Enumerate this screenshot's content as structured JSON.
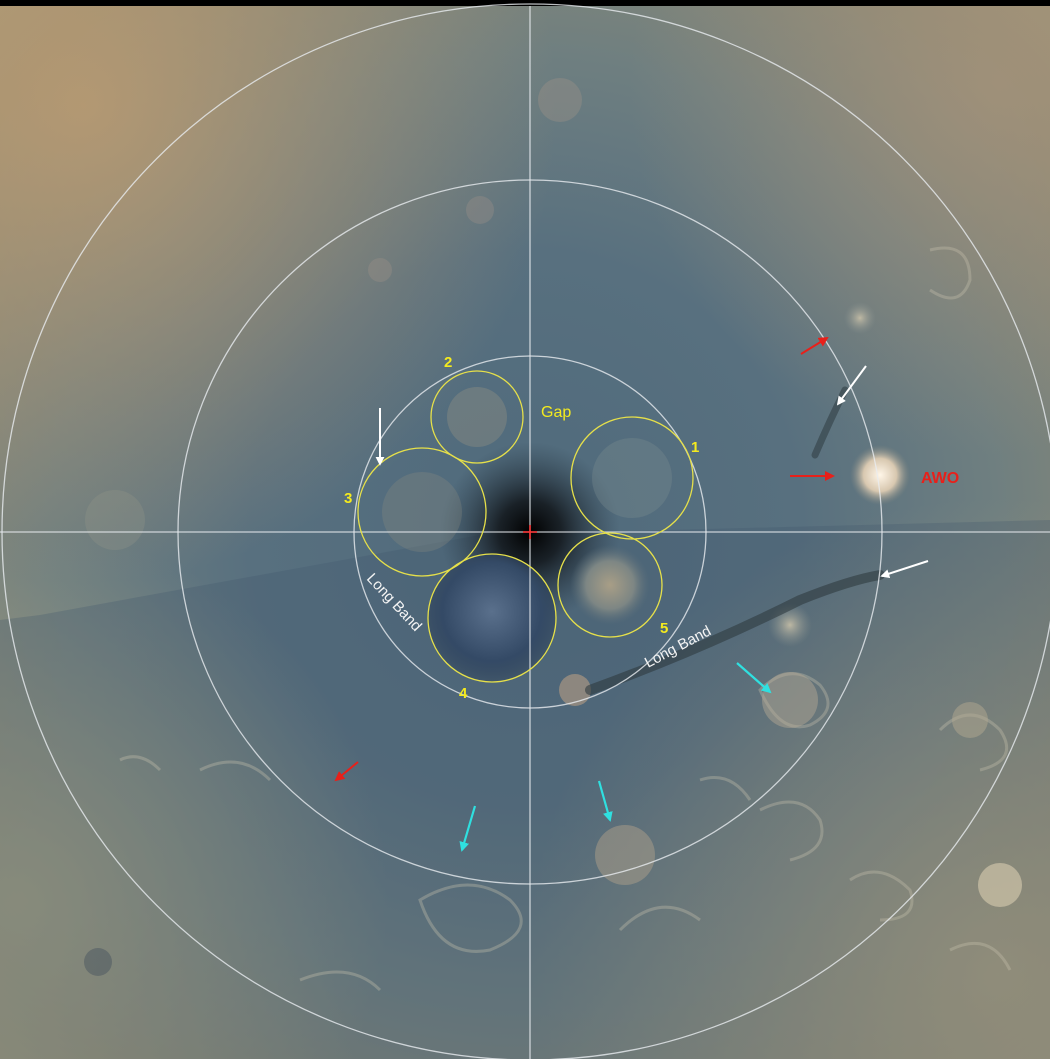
{
  "annotations": {
    "region_labels": {
      "gap": "Gap",
      "long_band_left": "Long Band",
      "long_band_right": "Long Band",
      "awo": "AWO"
    },
    "cyclone_numbers": [
      "1",
      "2",
      "3",
      "4",
      "5"
    ]
  },
  "colors": {
    "grid": "#e8ecf0",
    "cyclone_outline": "#e6e04a",
    "number_label": "#f4ea1e",
    "awo_label": "#e8201a",
    "arrow_red": "#e8201a",
    "arrow_white": "#ffffff",
    "arrow_cyan": "#2fe0e0",
    "center_mark": "#ff3030"
  },
  "icons": {
    "red_arrows": "red-arrow-icon",
    "white_arrows": "white-arrow-icon",
    "cyan_arrows": "cyan-arrow-icon"
  }
}
